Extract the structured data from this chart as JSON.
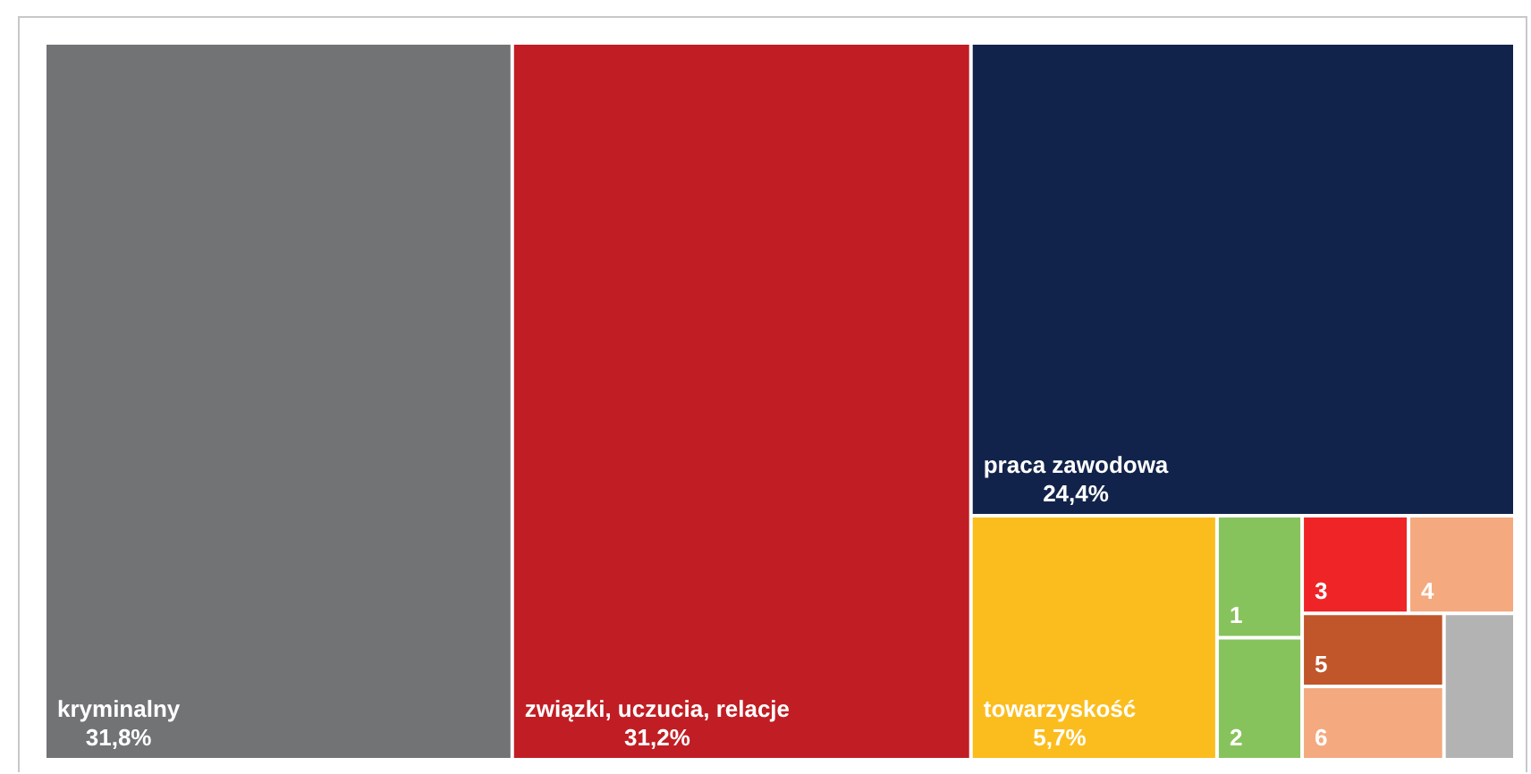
{
  "chart_data": {
    "type": "other",
    "categories": [
      "kryminalny",
      "związki, uczucia, relacje",
      "praca zawodowa",
      "towarzyskość",
      "1",
      "2",
      "3",
      "4",
      "5",
      "6",
      null
    ],
    "values": [
      31.8,
      31.2,
      24.4,
      5.7,
      null,
      null,
      null,
      null,
      null,
      null,
      null
    ],
    "value_labels": [
      "31,8%",
      "31,2%",
      "24,4%",
      "5,7%",
      null,
      null,
      null,
      null,
      null,
      null,
      null
    ],
    "colors": [
      "#717375",
      "#c01e24",
      "#12234b",
      "#fbbd1e",
      "#87c35c",
      "#87c35c",
      "#ee2427",
      "#f4a97f",
      "#c0562a",
      "#f4a97f",
      "#b3b3b3"
    ]
  }
}
